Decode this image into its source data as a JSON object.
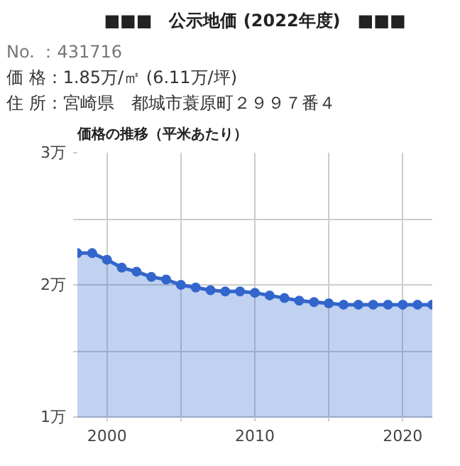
{
  "chart_data": {
    "type": "area",
    "title": "■■■　公示地価 (2022年度)　■■■",
    "annotations": [
      "No. ：431716",
      "価 格：1.85万/㎡ (6.11万/坪)",
      "住 所：宮崎県　都城市蓑原町２９９７番４"
    ],
    "subtitle": "価格の推移（平米あたり）",
    "x": [
      1998,
      1999,
      2000,
      2001,
      2002,
      2003,
      2004,
      2005,
      2006,
      2007,
      2008,
      2009,
      2010,
      2011,
      2012,
      2013,
      2014,
      2015,
      2016,
      2017,
      2018,
      2019,
      2020,
      2021,
      2022
    ],
    "series": [
      {
        "color": "#3366cc",
        "values": [
          2.24,
          2.24,
          2.19,
          2.13,
          2.1,
          2.06,
          2.04,
          2.0,
          1.98,
          1.96,
          1.95,
          1.95,
          1.94,
          1.92,
          1.9,
          1.88,
          1.87,
          1.86,
          1.85,
          1.85,
          1.85,
          1.85,
          1.85,
          1.85,
          1.85
        ]
      }
    ],
    "xlim": [
      1998,
      2022
    ],
    "xticks": [
      2000,
      {
        "value": 2005,
        "label": null
      },
      2010,
      {
        "value": 2015,
        "label": null
      },
      2020
    ],
    "ylim": [
      1,
      3
    ],
    "yticks": [
      {
        "value": 1,
        "label": "1万"
      },
      {
        "value": 1.5,
        "label": null
      },
      {
        "value": 2,
        "label": "2万"
      },
      {
        "value": 2.5,
        "label": null
      },
      {
        "value": 3,
        "label": "3万"
      }
    ],
    "grid": true,
    "marker": "circle"
  }
}
